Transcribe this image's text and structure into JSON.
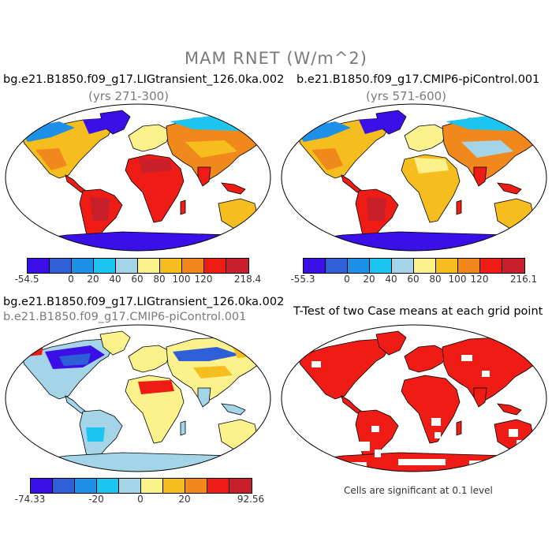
{
  "title": "MAM RNET (W/m^2)",
  "panels": {
    "top_left": {
      "case": "bg.e21.B1850.f09_g17.LIGtransient_126.0ka.002",
      "years": "(yrs 271-300)",
      "colorbar": {
        "min_label": "-54.5",
        "max_label": "218.4",
        "ticks": [
          "0",
          "20",
          "40",
          "60",
          "80",
          "100",
          "120"
        ]
      }
    },
    "top_right": {
      "case": "b.e21.B1850.f09_g17.CMIP6-piControl.001",
      "years": "(yrs 571-600)",
      "colorbar": {
        "min_label": "-55.3",
        "max_label": "216.1",
        "ticks": [
          "0",
          "20",
          "40",
          "60",
          "80",
          "100",
          "120"
        ]
      }
    },
    "bottom_left": {
      "case": "bg.e21.B1850.f09_g17.LIGtransient_126.0ka.002",
      "case2": "b.e21.B1850.f09_g17.CMIP6-piControl.001",
      "colorbar": {
        "min_label": "-74.33",
        "max_label": "92.56",
        "ticks": [
          "-20",
          "0",
          "20"
        ]
      }
    },
    "bottom_right": {
      "title": "T-Test of two Case means at each grid point",
      "note": "Cells are significant at 0.1 level"
    }
  },
  "palette": [
    "#3b10e8",
    "#2f5fd6",
    "#1e90e8",
    "#1cc4f0",
    "#a4d4e8",
    "#fbf28c",
    "#f6bd1e",
    "#f0881c",
    "#ee1c14",
    "#c81f2a"
  ]
}
